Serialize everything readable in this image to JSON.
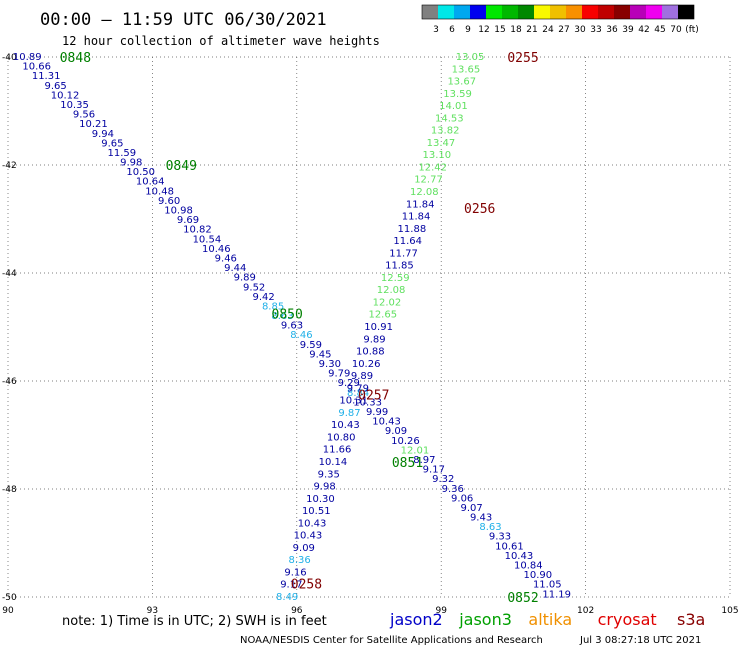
{
  "header": {
    "title": "00:00 — 11:59 UTC 06/30/2021",
    "subtitle": "12 hour collection of altimeter wave heights"
  },
  "colorbar": {
    "colors": [
      "#808080",
      "#00e8e8",
      "#00a8f0",
      "#0000f0",
      "#00e800",
      "#00b800",
      "#008800",
      "#f8f800",
      "#f0c000",
      "#f89000",
      "#f80000",
      "#c00000",
      "#880000",
      "#b800b8",
      "#f000f0",
      "#a070e0",
      "#000000"
    ],
    "labels": [
      "3",
      "6",
      "9",
      "12",
      "15",
      "18",
      "21",
      "24",
      "27",
      "30",
      "33",
      "36",
      "39",
      "42",
      "45",
      "70",
      "(ft)"
    ]
  },
  "footer": {
    "note": "note: 1) Time is in UTC; 2) SWH is in feet",
    "credit": "NOAA/NESDIS Center for Satellite Applications and Research",
    "timestamp": "Jul  3 08:27:18 UTC 2021",
    "legend": [
      {
        "name": "jason2",
        "color": "#0000c8"
      },
      {
        "name": "jason3",
        "color": "#00a000"
      },
      {
        "name": "altika",
        "color": "#f09000"
      },
      {
        "name": "cryosat",
        "color": "#e00000"
      },
      {
        "name": "s3a",
        "color": "#880000"
      }
    ]
  },
  "chart_data": {
    "type": "scatter",
    "xlim": [
      90,
      105
    ],
    "ylim": [
      -50,
      -40
    ],
    "x_ticks": [
      90,
      93,
      96,
      99,
      102,
      105
    ],
    "x_tick_labels": [
      "90",
      "93",
      "96",
      "99",
      "102",
      "105"
    ],
    "y_ticks": [
      -40,
      -42,
      -44,
      -46,
      -48,
      -50
    ],
    "y_tick_labels": [
      "-40",
      "-42",
      "-44",
      "-46",
      "-48",
      "-50"
    ],
    "grid": true,
    "colors": {
      "dark_blue": "#0000a0",
      "cyan": "#20b0e8",
      "light_green": "#60e060",
      "pass_green": "#008000",
      "pass_red": "#800000"
    },
    "tracks": [
      {
        "name": "track_a",
        "color": "dark_blue",
        "start": [
          90.4,
          -40.0
        ],
        "end": [
          101.4,
          -49.95
        ],
        "values": [
          "10.89",
          "10.66",
          "11.31",
          "9.65",
          "10.12",
          "10.35",
          "9.56",
          "10.21",
          "9.94",
          "9.65",
          "11.59",
          "9.98",
          "10.50",
          "10.64",
          "10.48",
          "9.60",
          "10.98",
          "9.69",
          "10.82",
          "10.54",
          "10.46",
          "9.46",
          "9.44",
          "9.89",
          "9.52",
          "9.42",
          "8.85",
          "8.63",
          "9.63",
          "8.46",
          "9.59",
          "9.45",
          "9.30",
          "9.79",
          "9.29",
          "8.84",
          "10.33",
          "9.99",
          "10.43",
          "9.09",
          "10.26",
          "12.01",
          "8.97",
          "9.17",
          "9.32",
          "9.36",
          "9.06",
          "9.07",
          "9.43",
          "8.63",
          "9.33",
          "10.61",
          "10.43",
          "10.84",
          "10.90",
          "11.05",
          "11.19"
        ],
        "cyan_idx": [
          26,
          27,
          29,
          35,
          49
        ],
        "green_idx": [
          41
        ]
      },
      {
        "name": "track_b",
        "color": "light_green",
        "start": [
          99.6,
          -40.0
        ],
        "end": [
          95.8,
          -50.0
        ],
        "values": [
          "13.05",
          "13.65",
          "13.67",
          "13.59",
          "14.01",
          "14.53",
          "13.82",
          "13.47",
          "13.10",
          "12.42",
          "12.77",
          "12.08",
          "11.84",
          "11.84",
          "11.88",
          "11.64",
          "11.77",
          "11.85",
          "12.59",
          "12.08",
          "12.02",
          "12.65",
          "10.91",
          "9.89",
          "10.88",
          "10.26",
          "9.89",
          "9.79",
          "10.31",
          "9.87",
          "10.43",
          "10.80",
          "11.66",
          "10.14",
          "9.35",
          "9.98",
          "10.30",
          "10.51",
          "10.43",
          "10.43",
          "9.09",
          "8.36",
          "9.16",
          "9.17",
          "8.49"
        ],
        "blue_idx": [
          12,
          13,
          14,
          15,
          16,
          17,
          22,
          23,
          24,
          25,
          26,
          27,
          28,
          30,
          31,
          32,
          33,
          34,
          35,
          36,
          37,
          38,
          39,
          40,
          42,
          43
        ],
        "cyan_idx": [
          29,
          41,
          44
        ]
      }
    ],
    "pass_labels": [
      {
        "text": "0848",
        "x": 91.4,
        "y": -40.0,
        "color": "pass_green"
      },
      {
        "text": "0849",
        "x": 93.6,
        "y": -42.0,
        "color": "pass_green"
      },
      {
        "text": "0850",
        "x": 95.8,
        "y": -44.75,
        "color": "pass_green"
      },
      {
        "text": "0851",
        "x": 98.3,
        "y": -47.5,
        "color": "pass_green"
      },
      {
        "text": "0852",
        "x": 100.7,
        "y": -50.0,
        "color": "pass_green"
      },
      {
        "text": "0255",
        "x": 100.7,
        "y": -40.0,
        "color": "pass_red"
      },
      {
        "text": "0256",
        "x": 99.8,
        "y": -42.8,
        "color": "pass_red"
      },
      {
        "text": "0257",
        "x": 97.6,
        "y": -46.25,
        "color": "pass_red"
      },
      {
        "text": "0258",
        "x": 96.2,
        "y": -49.75,
        "color": "pass_red"
      }
    ]
  }
}
